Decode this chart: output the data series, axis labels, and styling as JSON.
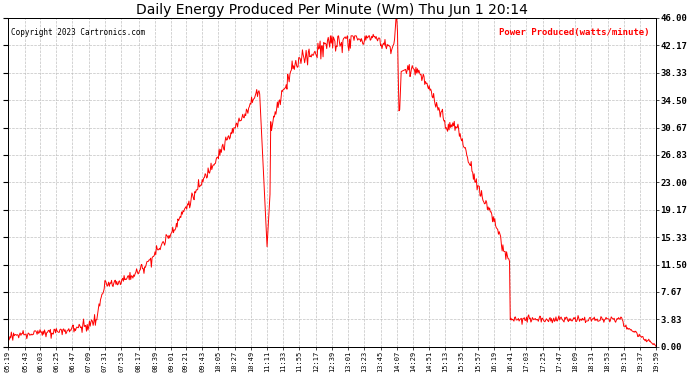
{
  "title": "Daily Energy Produced Per Minute (Wm) Thu Jun 1 20:14",
  "copyright": "Copyright 2023 Cartronics.com",
  "legend_label": "Power Produced(watts/minute)",
  "legend_color": "red",
  "copyright_color": "black",
  "title_color": "black",
  "background_color": "white",
  "line_color": "red",
  "grid_color": "#bbbbbb",
  "ytick_labels": [
    "0.00",
    "3.83",
    "7.67",
    "11.50",
    "15.33",
    "19.17",
    "23.00",
    "26.83",
    "30.67",
    "34.50",
    "38.33",
    "42.17",
    "46.00"
  ],
  "ytick_values": [
    0.0,
    3.83,
    7.67,
    11.5,
    15.33,
    19.17,
    23.0,
    26.83,
    30.67,
    34.5,
    38.33,
    42.17,
    46.0
  ],
  "ymax": 46.0,
  "ymin": 0.0,
  "xtick_labels": [
    "05:19",
    "05:43",
    "06:03",
    "06:25",
    "06:47",
    "07:09",
    "07:31",
    "07:53",
    "08:17",
    "08:39",
    "09:01",
    "09:21",
    "09:43",
    "10:05",
    "10:27",
    "10:49",
    "11:11",
    "11:33",
    "11:55",
    "12:17",
    "12:39",
    "13:01",
    "13:23",
    "13:45",
    "14:07",
    "14:29",
    "14:51",
    "15:13",
    "15:35",
    "15:57",
    "16:19",
    "16:41",
    "17:03",
    "17:25",
    "17:47",
    "18:09",
    "18:31",
    "18:53",
    "19:15",
    "19:37",
    "19:59"
  ],
  "figsize": [
    6.9,
    3.75
  ],
  "dpi": 100
}
